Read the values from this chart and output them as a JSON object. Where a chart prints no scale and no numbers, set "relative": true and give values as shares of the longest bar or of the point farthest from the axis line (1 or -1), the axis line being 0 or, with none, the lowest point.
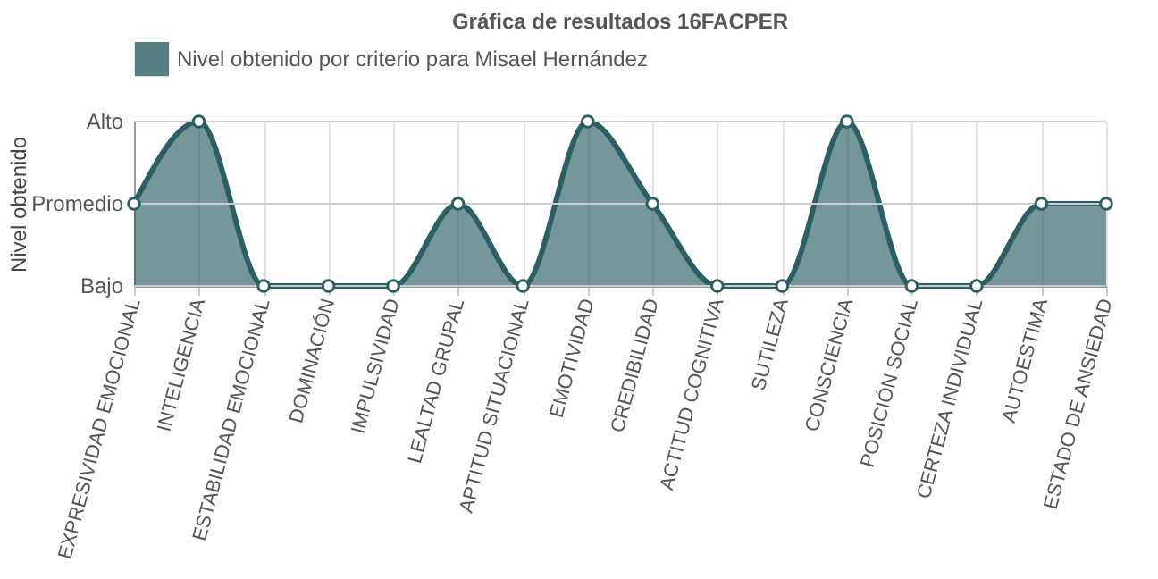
{
  "chart_data": {
    "type": "area",
    "title": "Gráfica de resultados 16FACPER",
    "ylabel": "Nivel obtenido",
    "categories": [
      "EXPRESIVIDAD EMOCIONAL",
      "INTELIGENCIA",
      "ESTABILIDAD EMOCIONAL",
      "DOMINACIÓN",
      "IMPULSIVIDAD",
      "LEALTAD GRUPAL",
      "APTITUD SITUACIONAL",
      "EMOTIVIDAD",
      "CREDIBILIDAD",
      "ACTITUD COGNITIVA",
      "SUTILEZA",
      "CONSCIENCIA",
      "POSICIÓN SOCIAL",
      "CERTEZA INDIVIDUAL",
      "AUTOESTIMA",
      "ESTADO DE ANSIEDAD"
    ],
    "series": [
      {
        "name": "Nivel obtenido por criterio para Misael Hernández",
        "color": "#2b5f63",
        "values": [
          0.5,
          1,
          0,
          0,
          0,
          0.5,
          0,
          1,
          0.5,
          0,
          0,
          1,
          0,
          0,
          0.5,
          0.5
        ]
      }
    ],
    "relative": true,
    "annotations": [
      "Bajo",
      "Promedio",
      "Alto"
    ],
    "grid": true,
    "legend": "top",
    "marker": "circle",
    "line_style": "solid"
  }
}
